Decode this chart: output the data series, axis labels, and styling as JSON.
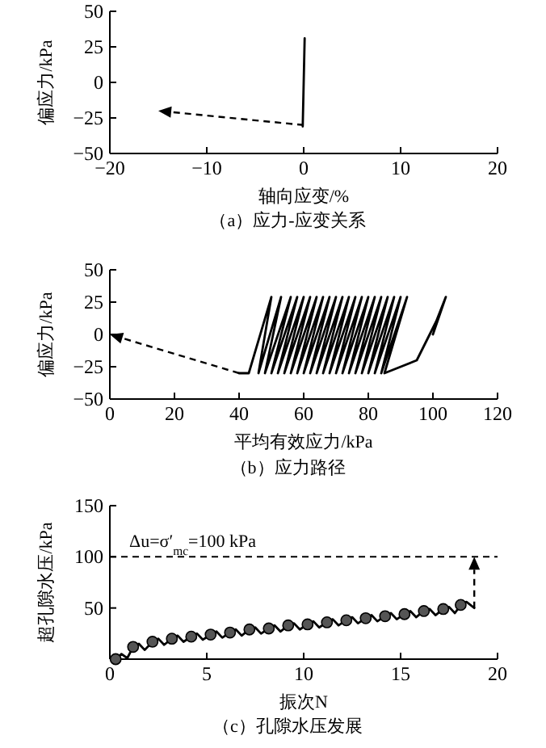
{
  "chart_data": [
    {
      "type": "line",
      "title": "（a）应力-应变关系",
      "xlabel": "轴向应变/%",
      "ylabel": "偏应力/kPa",
      "xlim": [
        -20,
        20
      ],
      "xticks": [
        -20,
        -10,
        0,
        10,
        20
      ],
      "ylim": [
        -50,
        50
      ],
      "yticks": [
        -50,
        -25,
        0,
        25,
        50
      ],
      "marker": "none",
      "grid": false,
      "series": [
        {
          "color": "#000000",
          "x": [
            -0.1,
            0,
            0.1
          ],
          "values": [
            -31,
            0,
            31
          ]
        }
      ]
    },
    {
      "type": "line",
      "title": "（b）应力路径",
      "xlabel": "平均有效应力/kPa",
      "ylabel": "偏应力/kPa",
      "xlim": [
        0,
        120
      ],
      "xticks": [
        0,
        20,
        40,
        60,
        80,
        100,
        120
      ],
      "ylim": [
        -50,
        50
      ],
      "yticks": [
        -50,
        -25,
        0,
        25,
        50
      ],
      "marker": "none",
      "grid": false,
      "series": [
        {
          "color": "#000000",
          "x": [
            100,
            104,
            101,
            95,
            85,
            92,
            84,
            90,
            82,
            88,
            80,
            86,
            78,
            84,
            76,
            82,
            74,
            80,
            72,
            78,
            70,
            76,
            68,
            74,
            66,
            72,
            64,
            70,
            62,
            68,
            60,
            66,
            58,
            64,
            56,
            62,
            54,
            60,
            52,
            58,
            50,
            56,
            48,
            53,
            46,
            50,
            43,
            40
          ],
          "values": [
            0,
            29,
            10,
            -20,
            -30,
            29,
            -30,
            29,
            -30,
            29,
            -30,
            29,
            -30,
            29,
            -30,
            29,
            -30,
            29,
            -30,
            29,
            -30,
            29,
            -30,
            29,
            -30,
            29,
            -30,
            29,
            -30,
            29,
            -30,
            29,
            -30,
            29,
            -30,
            29,
            -30,
            29,
            -30,
            29,
            -30,
            29,
            -30,
            29,
            -30,
            29,
            -30,
            -30
          ]
        }
      ]
    },
    {
      "type": "line",
      "title": "（c）孔隙水压发展",
      "xlabel": "振次N",
      "ylabel": "超孔隙水压/kPa",
      "xlim": [
        0,
        20
      ],
      "xticks": [
        0,
        5,
        10,
        15,
        20
      ],
      "ylim": [
        0,
        150
      ],
      "yticks": [
        50,
        100,
        150
      ],
      "grid": false,
      "ref_lines": [
        {
          "axis": "y",
          "value": 100,
          "label": "Δu=σ′$_{mc}$=100 kPa",
          "line_style": "dashed",
          "color": "#000000"
        }
      ],
      "series": [
        {
          "color": "#000000",
          "marker": "none",
          "x": [
            0.3,
            0.6,
            0.9,
            1.2,
            1.5,
            1.8,
            2.2,
            2.5,
            2.8,
            3.2,
            3.5,
            3.8,
            4.2,
            4.5,
            4.8,
            5.2,
            5.5,
            5.8,
            6.2,
            6.5,
            6.8,
            7.2,
            7.5,
            7.8,
            8.2,
            8.5,
            8.8,
            9.2,
            9.5,
            9.8,
            10.2,
            10.5,
            10.8,
            11.2,
            11.5,
            11.8,
            12.2,
            12.5,
            12.8,
            13.2,
            13.5,
            13.8,
            14.2,
            14.5,
            14.8,
            15.2,
            15.5,
            15.8,
            16.2,
            16.5,
            16.8,
            17.2,
            17.5,
            17.8,
            18.1,
            18.4,
            18.8
          ],
          "values": [
            0,
            5,
            1,
            12,
            15,
            9,
            17,
            20,
            14,
            20,
            23,
            17,
            22,
            25,
            19,
            24,
            27,
            21,
            26,
            29,
            23,
            29,
            31,
            25,
            30,
            33,
            27,
            33,
            35,
            29,
            34,
            37,
            31,
            36,
            39,
            33,
            38,
            41,
            35,
            40,
            43,
            37,
            42,
            45,
            39,
            44,
            47,
            41,
            47,
            49,
            43,
            49,
            51,
            45,
            53,
            56,
            50
          ]
        },
        {
          "type": "scatter",
          "marker": "circle",
          "color": "#555555",
          "x": [
            0.3,
            1.2,
            2.2,
            3.2,
            4.2,
            5.2,
            6.2,
            7.2,
            8.2,
            9.2,
            10.2,
            11.2,
            12.2,
            13.2,
            14.2,
            15.2,
            16.2,
            17.2,
            18.1
          ],
          "values": [
            0,
            12,
            17,
            20,
            22,
            24,
            26,
            29,
            30,
            33,
            34,
            36,
            38,
            40,
            42,
            44,
            47,
            49,
            53
          ]
        }
      ]
    }
  ]
}
